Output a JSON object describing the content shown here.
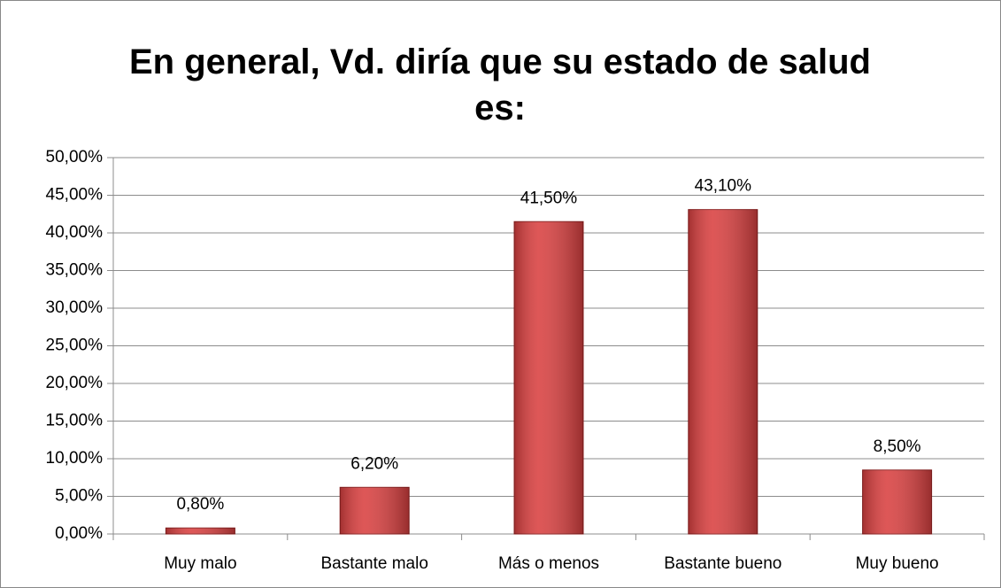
{
  "chart_data": {
    "type": "bar",
    "title": "En general, Vd. diría que su estado de salud es:",
    "categories": [
      "Muy malo",
      "Bastante malo",
      "Más o menos",
      "Bastante bueno",
      "Muy bueno"
    ],
    "values": [
      0.8,
      6.2,
      41.5,
      43.1,
      8.5
    ],
    "value_labels": [
      "0,80%",
      "6,20%",
      "41,50%",
      "43,10%",
      "8,50%"
    ],
    "color": "#d94040",
    "ylim": [
      0,
      50
    ],
    "yticks": [
      {
        "value": 0,
        "label": "0,00%"
      },
      {
        "value": 5,
        "label": "5,00%"
      },
      {
        "value": 10,
        "label": "10,00%"
      },
      {
        "value": 15,
        "label": "15,00%"
      },
      {
        "value": 20,
        "label": "20,00%"
      },
      {
        "value": 25,
        "label": "25,00%"
      },
      {
        "value": 30,
        "label": "30,00%"
      },
      {
        "value": 35,
        "label": "35,00%"
      },
      {
        "value": 40,
        "label": "40,00%"
      },
      {
        "value": 45,
        "label": "45,00%"
      },
      {
        "value": 50,
        "label": "50,00%"
      }
    ],
    "grid": true
  }
}
